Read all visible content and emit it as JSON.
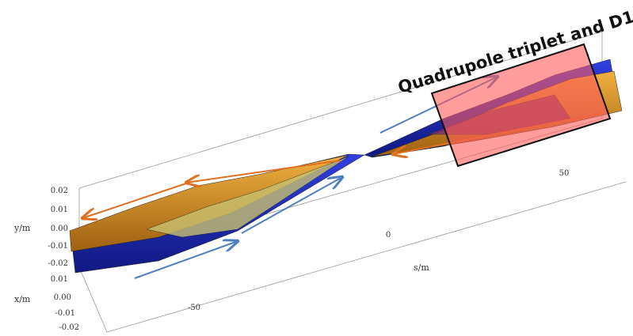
{
  "annotation": "Quadrupole triplet and D1",
  "axes": {
    "y": {
      "label": "y/m",
      "ticks": [
        "0.02",
        "0.01",
        "0.00",
        "-0.01",
        "-0.02"
      ]
    },
    "x": {
      "label": "x/m",
      "ticks": [
        "0.01",
        "0.00",
        "-0.01",
        "-0.02"
      ]
    },
    "s": {
      "label": "s/m",
      "ticks": [
        "-50",
        "0",
        "50"
      ]
    }
  }
}
